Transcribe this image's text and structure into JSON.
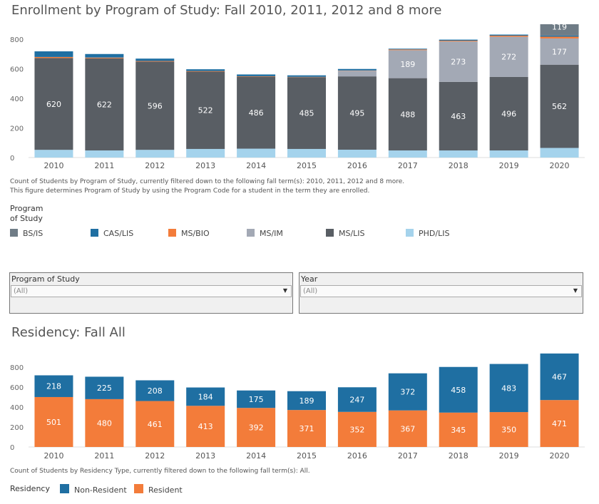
{
  "chart_data": [
    {
      "type": "bar",
      "title": "Enrollment by Program of Study: Fall 2010, 2011, 2012 and 8 more",
      "categories": [
        "2010",
        "2011",
        "2012",
        "2013",
        "2014",
        "2015",
        "2016",
        "2017",
        "2018",
        "2019",
        "2020"
      ],
      "ylim": [
        0,
        900
      ],
      "yticks": [
        0,
        200,
        400,
        600,
        800
      ],
      "stacked": true,
      "series": [
        {
          "name": "PHD/LIS",
          "color": "#a5d3ec",
          "values": [
            52,
            48,
            52,
            58,
            60,
            58,
            53,
            48,
            48,
            48,
            65
          ]
        },
        {
          "name": "MS/LIS",
          "color": "#595e64",
          "values": [
            620,
            622,
            596,
            522,
            486,
            485,
            495,
            488,
            463,
            496,
            562
          ]
        },
        {
          "name": "MS/IM",
          "color": "#a3a9b5",
          "values": [
            0,
            0,
            0,
            0,
            0,
            0,
            38,
            189,
            273,
            272,
            177
          ]
        },
        {
          "name": "MS/BIO",
          "color": "#f37c3a",
          "values": [
            7,
            5,
            4,
            4,
            3,
            2,
            2,
            5,
            5,
            7,
            12
          ]
        },
        {
          "name": "CAS/LIS",
          "color": "#1f6fa2",
          "values": [
            38,
            24,
            16,
            12,
            12,
            10,
            10,
            5,
            7,
            7,
            8
          ]
        },
        {
          "name": "BS/IS",
          "color": "#6f7c86",
          "values": [
            0,
            0,
            0,
            0,
            0,
            0,
            0,
            0,
            0,
            0,
            119
          ]
        }
      ],
      "labelled_series": [
        "MS/LIS",
        "MS/IM",
        "BS/IS"
      ],
      "caption": [
        "Count of Students by Program of Study, currently filtered down to the following fall term(s): 2010, 2011, 2012 and 8 more.",
        "This figure determines Program of Study by using the Program Code for a student in the term they are enrolled."
      ],
      "legend_title": "Program of Study",
      "legend": [
        {
          "label": "BS/IS",
          "color": "#6f7c86"
        },
        {
          "label": "CAS/LIS",
          "color": "#1f6fa2"
        },
        {
          "label": "MS/BIO",
          "color": "#f37c3a"
        },
        {
          "label": "MS/IM",
          "color": "#a3a9b5"
        },
        {
          "label": "MS/LIS",
          "color": "#595e64"
        },
        {
          "label": "PHD/LIS",
          "color": "#a5d3ec"
        }
      ]
    },
    {
      "type": "bar",
      "title": "Residency: Fall All",
      "categories": [
        "2010",
        "2011",
        "2012",
        "2013",
        "2014",
        "2015",
        "2016",
        "2017",
        "2018",
        "2019",
        "2020"
      ],
      "ylim": [
        0,
        980
      ],
      "yticks": [
        0,
        200,
        400,
        600,
        800
      ],
      "stacked": true,
      "series": [
        {
          "name": "Resident",
          "color": "#f37c3a",
          "values": [
            501,
            480,
            461,
            413,
            392,
            371,
            352,
            367,
            345,
            350,
            471
          ]
        },
        {
          "name": "Non-Resident",
          "color": "#1f6fa2",
          "values": [
            218,
            225,
            208,
            184,
            175,
            189,
            247,
            372,
            458,
            483,
            467
          ]
        }
      ],
      "caption": "Count of Students by Residency Type, currently filtered down to the following fall term(s): All.",
      "legend_title": "Residency",
      "legend": [
        {
          "label": "Non-Resident",
          "color": "#1f6fa2"
        },
        {
          "label": "Resident",
          "color": "#f37c3a"
        }
      ]
    }
  ],
  "filters": {
    "program": {
      "label": "Program of Study",
      "value": "(All)"
    },
    "year": {
      "label": "Year",
      "value": "(All)"
    }
  },
  "icons": {
    "dropdown": "chevron-down-icon"
  }
}
